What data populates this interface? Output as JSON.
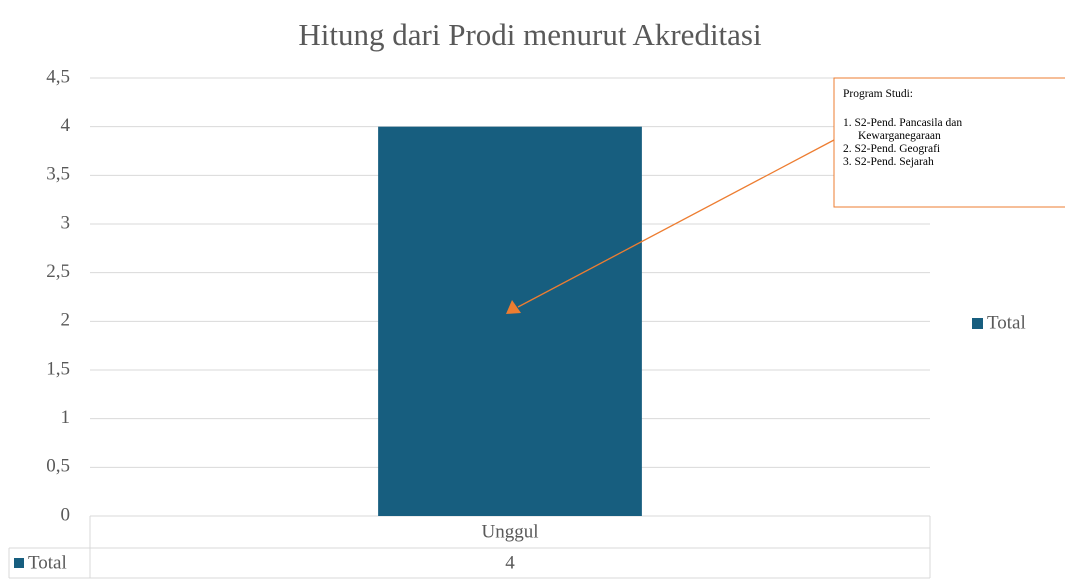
{
  "chart_data": {
    "type": "bar",
    "title": "Hitung dari Prodi menurut Akreditasi",
    "categories": [
      "Unggul"
    ],
    "series": [
      {
        "name": "Total",
        "color": "#175e7f",
        "values": [
          4
        ]
      }
    ],
    "ylim": [
      0,
      4.5
    ],
    "yticks": [
      0,
      {
        "value": 0.5,
        "label": "0,5"
      },
      1,
      {
        "value": 1.5,
        "label": "1,5"
      },
      2,
      {
        "value": 2.5,
        "label": "2,5"
      },
      3,
      {
        "value": 3.5,
        "label": "3,5"
      },
      4,
      {
        "value": 4.5,
        "label": "4,5"
      }
    ],
    "grid": true,
    "legend": "right",
    "data_table": true,
    "annotation": {
      "title": "Program Studi:",
      "items": [
        "1.  S2-Pend. Pancasila dan Kewarganegaraan",
        "2.  S2-Pend. Geografi",
        "3.  S2-Pend. Sejarah"
      ],
      "color": "#ed7d31"
    }
  }
}
